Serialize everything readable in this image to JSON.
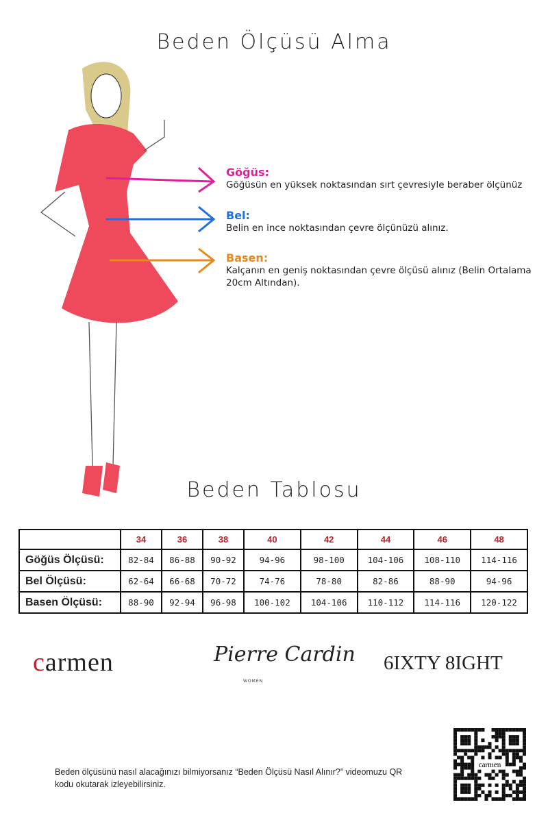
{
  "title": "Beden Ölçüsü Alma",
  "measurements": [
    {
      "label": "Göğüs:",
      "desc": "Göğüsün en yüksek noktasından sırt çevresiyle beraber ölçünüz",
      "color": "#e0209a"
    },
    {
      "label": "Bel:",
      "desc": "Belin en ince noktasından çevre ölçünüzü alınız.",
      "color": "#1f6fe0"
    },
    {
      "label": "Basen:",
      "desc": "Kalçanın en geniş noktasından çevre ölçüsü alınız (Belin Ortalama 20cm Altından).",
      "color": "#e8891a"
    }
  ],
  "table_title": "Beden Tablosu",
  "table": {
    "sizes": [
      "34",
      "36",
      "38",
      "40",
      "42",
      "44",
      "46",
      "48"
    ],
    "rows": [
      {
        "label": "Göğüs Ölçüsü:",
        "values": [
          "82-84",
          "86-88",
          "90-92",
          "94-96",
          "98-100",
          "104-106",
          "108-110",
          "114-116"
        ]
      },
      {
        "label": "Bel Ölçüsü:",
        "values": [
          "62-64",
          "66-68",
          "70-72",
          "74-76",
          "78-80",
          "82-86",
          "88-90",
          "94-96"
        ]
      },
      {
        "label": "Basen Ölçüsü:",
        "values": [
          "88-90",
          "92-94",
          "96-98",
          "100-102",
          "104-106",
          "110-112",
          "114-116",
          "120-122"
        ]
      }
    ]
  },
  "brands": {
    "carmen": "carmen",
    "pierre_cardin": "Pierre Cardin",
    "pierre_cardin_sub": "WOMEN",
    "sixty_eight": "6IXTY 8IGHT"
  },
  "footer": "Beden ölçüsünü nasıl alacağınızı bilmiyorsanız “Beden Ölçüsü Nasıl Alınır?” videomuzu QR kodu okutarak izleyebilirsiniz.",
  "qr_label": "carmen",
  "dress_color": "#ee4a5c"
}
